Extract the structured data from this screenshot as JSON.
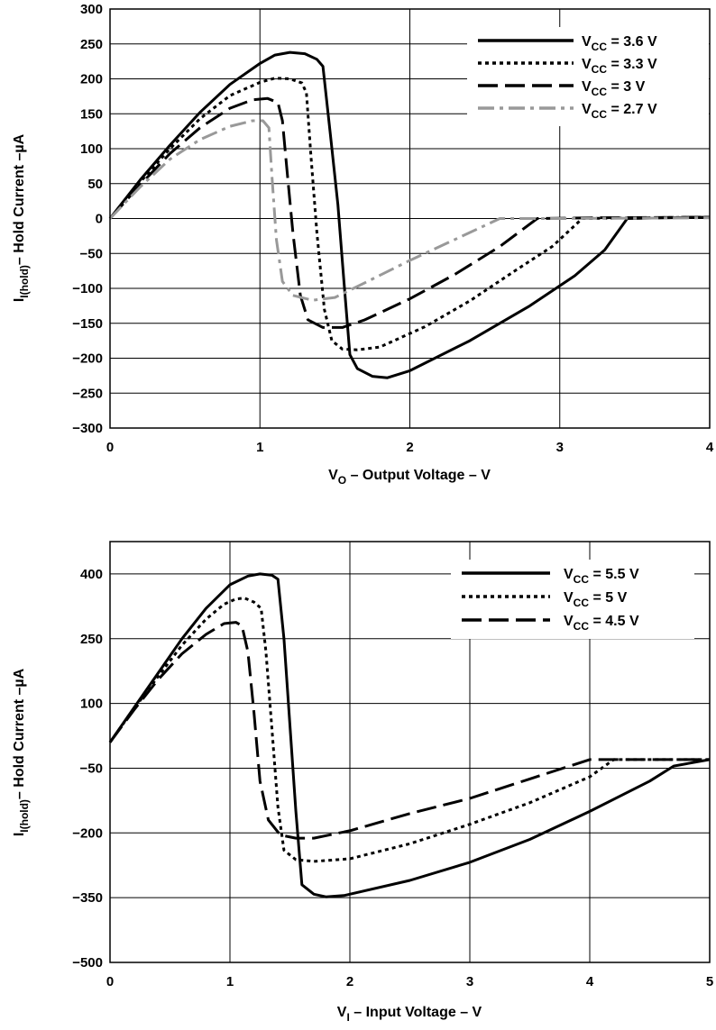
{
  "chart_data": [
    {
      "type": "line",
      "xlabel": "V_O – Output Voltage – V",
      "ylabel": "I_I(hold) – Hold Current – µA",
      "xlim": [
        0,
        4
      ],
      "ylim": [
        -300,
        300
      ],
      "xticks": [
        "0",
        "1",
        "2",
        "3",
        "4"
      ],
      "yticks": [
        "300",
        "250",
        "200",
        "150",
        "100",
        "50",
        "0",
        "−50",
        "−100",
        "−150",
        "−200",
        "−250",
        "−300"
      ],
      "grid": true,
      "legend_position": "top-right",
      "series": [
        {
          "name": "V_CC = 3.6 V",
          "color": "#000000",
          "dash": "solid",
          "points": [
            [
              0,
              0
            ],
            [
              0.2,
              55
            ],
            [
              0.4,
              105
            ],
            [
              0.6,
              152
            ],
            [
              0.8,
              192
            ],
            [
              1.0,
              222
            ],
            [
              1.1,
              234
            ],
            [
              1.2,
              238
            ],
            [
              1.3,
              236
            ],
            [
              1.38,
              228
            ],
            [
              1.42,
              218
            ],
            [
              1.47,
              120
            ],
            [
              1.52,
              20
            ],
            [
              1.56,
              -90
            ],
            [
              1.6,
              -195
            ],
            [
              1.65,
              -215
            ],
            [
              1.75,
              -226
            ],
            [
              1.85,
              -228
            ],
            [
              2.0,
              -218
            ],
            [
              2.4,
              -175
            ],
            [
              2.8,
              -125
            ],
            [
              3.1,
              -82
            ],
            [
              3.3,
              -45
            ],
            [
              3.45,
              0
            ],
            [
              3.7,
              1
            ],
            [
              4.0,
              2
            ]
          ]
        },
        {
          "name": "V_CC = 3.3 V",
          "color": "#000000",
          "dash": "dotted",
          "points": [
            [
              0,
              0
            ],
            [
              0.2,
              52
            ],
            [
              0.4,
              100
            ],
            [
              0.6,
              143
            ],
            [
              0.8,
              176
            ],
            [
              1.0,
              195
            ],
            [
              1.1,
              201
            ],
            [
              1.2,
              200
            ],
            [
              1.28,
              194
            ],
            [
              1.31,
              180
            ],
            [
              1.34,
              90
            ],
            [
              1.38,
              -20
            ],
            [
              1.43,
              -130
            ],
            [
              1.48,
              -175
            ],
            [
              1.55,
              -187
            ],
            [
              1.65,
              -188
            ],
            [
              1.8,
              -184
            ],
            [
              2.1,
              -155
            ],
            [
              2.4,
              -118
            ],
            [
              2.7,
              -75
            ],
            [
              2.95,
              -40
            ],
            [
              3.15,
              0
            ],
            [
              3.5,
              1
            ],
            [
              4.0,
              2
            ]
          ]
        },
        {
          "name": "V_CC = 3 V",
          "color": "#000000",
          "dash": "long-dash",
          "points": [
            [
              0,
              0
            ],
            [
              0.2,
              48
            ],
            [
              0.4,
              93
            ],
            [
              0.6,
              130
            ],
            [
              0.8,
              158
            ],
            [
              0.95,
              170
            ],
            [
              1.05,
              172
            ],
            [
              1.12,
              166
            ],
            [
              1.15,
              140
            ],
            [
              1.18,
              70
            ],
            [
              1.22,
              -20
            ],
            [
              1.27,
              -110
            ],
            [
              1.32,
              -145
            ],
            [
              1.42,
              -156
            ],
            [
              1.55,
              -156
            ],
            [
              1.7,
              -145
            ],
            [
              2.0,
              -115
            ],
            [
              2.3,
              -80
            ],
            [
              2.6,
              -40
            ],
            [
              2.85,
              0
            ],
            [
              3.2,
              1
            ],
            [
              4.0,
              2
            ]
          ]
        },
        {
          "name": "V_CC = 2.7 V",
          "color": "#999999",
          "dash": "dash-dot",
          "points": [
            [
              0,
              0
            ],
            [
              0.2,
              45
            ],
            [
              0.4,
              85
            ],
            [
              0.6,
              113
            ],
            [
              0.8,
              132
            ],
            [
              0.95,
              140
            ],
            [
              1.02,
              140
            ],
            [
              1.06,
              130
            ],
            [
              1.08,
              60
            ],
            [
              1.11,
              -30
            ],
            [
              1.15,
              -90
            ],
            [
              1.22,
              -110
            ],
            [
              1.35,
              -117
            ],
            [
              1.5,
              -113
            ],
            [
              1.7,
              -92
            ],
            [
              2.0,
              -60
            ],
            [
              2.3,
              -30
            ],
            [
              2.6,
              0
            ],
            [
              3.0,
              0
            ],
            [
              4.0,
              1
            ]
          ]
        }
      ]
    },
    {
      "type": "line",
      "xlabel": "V_I – Input Voltage – V",
      "ylabel": "I_I(hold) – Hold Current – µA",
      "xlim": [
        0,
        5
      ],
      "ylim": [
        -500,
        475
      ],
      "xticks": [
        "0",
        "1",
        "2",
        "3",
        "4",
        "5"
      ],
      "yticks": [
        "400",
        "250",
        "100",
        "−50",
        "−200",
        "−350",
        "−500"
      ],
      "grid": true,
      "legend_position": "top-right",
      "series": [
        {
          "name": "V_CC = 5.5 V",
          "color": "#000000",
          "dash": "solid",
          "points": [
            [
              0,
              10
            ],
            [
              0.2,
              90
            ],
            [
              0.4,
              170
            ],
            [
              0.6,
              250
            ],
            [
              0.8,
              320
            ],
            [
              1.0,
              375
            ],
            [
              1.15,
              395
            ],
            [
              1.25,
              400
            ],
            [
              1.35,
              397
            ],
            [
              1.4,
              388
            ],
            [
              1.45,
              250
            ],
            [
              1.5,
              50
            ],
            [
              1.55,
              -150
            ],
            [
              1.6,
              -320
            ],
            [
              1.7,
              -342
            ],
            [
              1.8,
              -348
            ],
            [
              1.95,
              -345
            ],
            [
              2.5,
              -310
            ],
            [
              3.0,
              -268
            ],
            [
              3.5,
              -215
            ],
            [
              4.0,
              -150
            ],
            [
              4.5,
              -80
            ],
            [
              4.7,
              -45
            ],
            [
              5.0,
              -30
            ]
          ]
        },
        {
          "name": "V_CC = 5 V",
          "color": "#000000",
          "dash": "dotted",
          "points": [
            [
              0,
              10
            ],
            [
              0.2,
              88
            ],
            [
              0.4,
              162
            ],
            [
              0.6,
              235
            ],
            [
              0.8,
              295
            ],
            [
              0.95,
              330
            ],
            [
              1.05,
              342
            ],
            [
              1.12,
              344
            ],
            [
              1.2,
              335
            ],
            [
              1.26,
              320
            ],
            [
              1.3,
              220
            ],
            [
              1.35,
              40
            ],
            [
              1.4,
              -140
            ],
            [
              1.45,
              -240
            ],
            [
              1.55,
              -262
            ],
            [
              1.7,
              -266
            ],
            [
              2.0,
              -260
            ],
            [
              2.5,
              -225
            ],
            [
              3.0,
              -180
            ],
            [
              3.5,
              -130
            ],
            [
              4.0,
              -70
            ],
            [
              4.2,
              -30
            ],
            [
              5.0,
              -30
            ]
          ]
        },
        {
          "name": "V_CC = 4.5 V",
          "color": "#000000",
          "dash": "long-dash",
          "points": [
            [
              0,
              10
            ],
            [
              0.2,
              85
            ],
            [
              0.4,
              155
            ],
            [
              0.6,
              215
            ],
            [
              0.8,
              260
            ],
            [
              0.95,
              285
            ],
            [
              1.05,
              288
            ],
            [
              1.1,
              280
            ],
            [
              1.15,
              220
            ],
            [
              1.2,
              80
            ],
            [
              1.25,
              -80
            ],
            [
              1.32,
              -170
            ],
            [
              1.42,
              -205
            ],
            [
              1.55,
              -212
            ],
            [
              1.7,
              -212
            ],
            [
              2.0,
              -195
            ],
            [
              2.5,
              -155
            ],
            [
              3.0,
              -120
            ],
            [
              3.5,
              -75
            ],
            [
              4.0,
              -30
            ],
            [
              5.0,
              -30
            ]
          ]
        }
      ]
    }
  ],
  "charts": [
    {
      "ylabel_main": "I",
      "ylabel_sub": "I(hold)",
      "ylabel_rest": "– Hold Current –µA",
      "xlabel_main": "V",
      "xlabel_sub": "O",
      "xlabel_rest": " – Output Voltage – V",
      "legend": [
        {
          "main": "V",
          "sub": "CC",
          "rest": " = 3.6 V"
        },
        {
          "main": "V",
          "sub": "CC",
          "rest": " = 3.3 V"
        },
        {
          "main": "V",
          "sub": "CC",
          "rest": " = 3 V"
        },
        {
          "main": "V",
          "sub": "CC",
          "rest": " = 2.7 V"
        }
      ]
    },
    {
      "ylabel_main": "I",
      "ylabel_sub": "I(hold)",
      "ylabel_rest": "– Hold Current –µA",
      "xlabel_main": "V",
      "xlabel_sub": "I",
      "xlabel_rest": " – Input Voltage – V",
      "legend": [
        {
          "main": "V",
          "sub": "CC",
          "rest": " = 5.5 V"
        },
        {
          "main": "V",
          "sub": "CC",
          "rest": " = 5 V"
        },
        {
          "main": "V",
          "sub": "CC",
          "rest": " = 4.5 V"
        }
      ]
    }
  ]
}
